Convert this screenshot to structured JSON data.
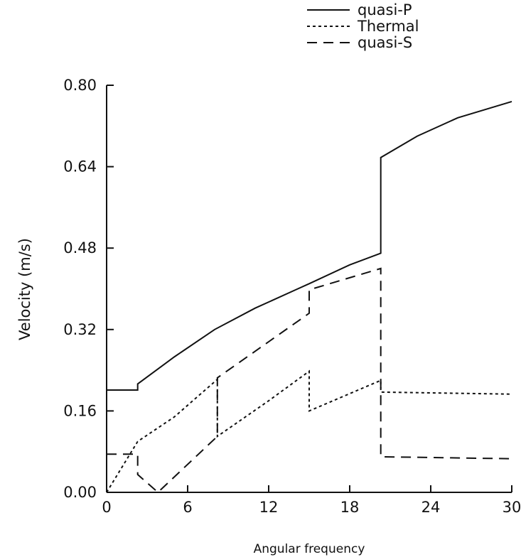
{
  "chart_data": {
    "type": "line",
    "xlabel": "Angular frequency",
    "ylabel": "Velocity  (m/s)",
    "xlim": [
      0,
      30
    ],
    "ylim": [
      0,
      0.8
    ],
    "xticks": [
      0,
      6,
      12,
      18,
      24,
      30
    ],
    "xtick_labels": [
      "0",
      "6",
      "12",
      "18",
      "24",
      "30"
    ],
    "yticks": [
      0,
      0.16,
      0.32,
      0.48,
      0.64,
      0.8
    ],
    "ytick_labels": [
      "0.00",
      "0.16",
      "0.32",
      "0.48",
      "0.64",
      "0.80"
    ],
    "grid": false,
    "legend_position": "top-right",
    "series": [
      {
        "name": "quasi-P",
        "style": "solid",
        "x": [
          0,
          2.3,
          2.3,
          5,
          8,
          11,
          14,
          15,
          18,
          20.3,
          20.3,
          23,
          26,
          30
        ],
        "y": [
          0.201,
          0.201,
          0.213,
          0.266,
          0.32,
          0.362,
          0.398,
          0.41,
          0.447,
          0.47,
          0.658,
          0.7,
          0.736,
          0.768
        ]
      },
      {
        "name": "Thermal",
        "style": "dotted",
        "x": [
          0,
          2.3,
          5,
          8.2,
          8.2,
          12,
          15,
          15,
          20.3,
          20.3,
          30
        ],
        "y": [
          0.0,
          0.1,
          0.148,
          0.222,
          0.11,
          0.18,
          0.238,
          0.16,
          0.22,
          0.197,
          0.193
        ]
      },
      {
        "name": "quasi-S",
        "style": "dashed",
        "x": [
          0,
          2.3,
          2.3,
          3.8,
          8.2,
          8.2,
          15,
          15,
          20.3,
          20.3,
          30
        ],
        "y": [
          0.075,
          0.075,
          0.035,
          0.0,
          0.11,
          0.225,
          0.352,
          0.398,
          0.44,
          0.07,
          0.066
        ]
      }
    ]
  }
}
